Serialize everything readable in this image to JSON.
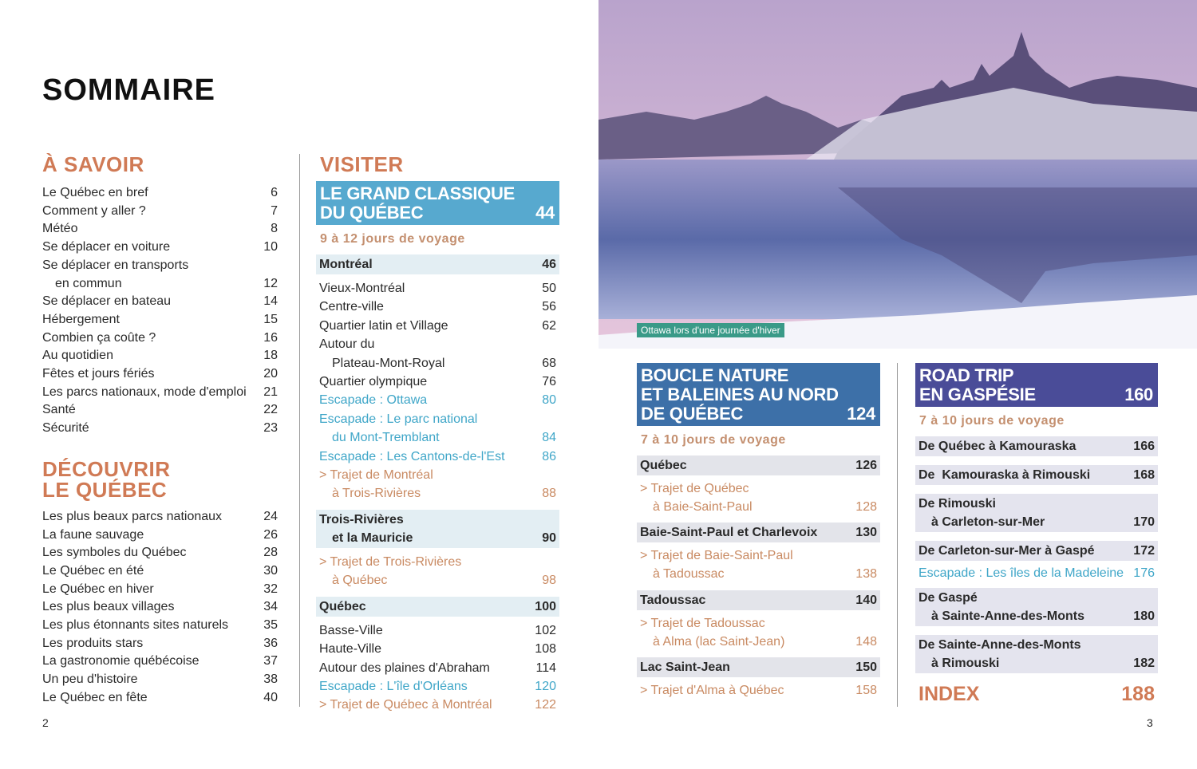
{
  "title": "SOMMAIRE",
  "page_left": "2",
  "page_right": "3",
  "photo_caption": "Ottawa lors d'une journée d'hiver",
  "colors": {
    "heading": "#d07a55",
    "box_classique": "#57a9cf",
    "box_boucle": "#3d70a8",
    "box_road": "#4a4c98",
    "hl_classique": "#e3eef3",
    "hl_boucle": "#e3e4ea",
    "hl_road": "#e4e4ee",
    "escapade": "#3fa6c8",
    "trajet": "#c98a62",
    "caption": "#3a9a88"
  },
  "col1": {
    "savoir_heading": "À SAVOIR",
    "savoir": [
      {
        "lines": [
          "Le Québec en bref"
        ],
        "page": "6"
      },
      {
        "lines": [
          "Comment y aller ?"
        ],
        "page": "7"
      },
      {
        "lines": [
          "Météo"
        ],
        "page": "8"
      },
      {
        "lines": [
          "Se déplacer en voiture"
        ],
        "page": "10"
      },
      {
        "lines": [
          "Se déplacer en transports",
          "en commun"
        ],
        "page": "12"
      },
      {
        "lines": [
          "Se déplacer en bateau"
        ],
        "page": "14"
      },
      {
        "lines": [
          "Hébergement"
        ],
        "page": "15"
      },
      {
        "lines": [
          "Combien ça coûte ?"
        ],
        "page": "16"
      },
      {
        "lines": [
          "Au quotidien"
        ],
        "page": "18"
      },
      {
        "lines": [
          "Fêtes et jours fériés"
        ],
        "page": "20"
      },
      {
        "lines": [
          "Les parcs nationaux, mode d'emploi"
        ],
        "page": "21"
      },
      {
        "lines": [
          "Santé"
        ],
        "page": "22"
      },
      {
        "lines": [
          "Sécurité"
        ],
        "page": "23"
      }
    ],
    "decouvrir_heading": [
      "DÉCOUVRIR",
      "LE QUÉBEC"
    ],
    "decouvrir": [
      {
        "lines": [
          "Les plus beaux parcs nationaux"
        ],
        "page": "24"
      },
      {
        "lines": [
          "La faune sauvage"
        ],
        "page": "26"
      },
      {
        "lines": [
          "Les symboles du Québec"
        ],
        "page": "28"
      },
      {
        "lines": [
          "Le Québec en été"
        ],
        "page": "30"
      },
      {
        "lines": [
          "Le Québec en hiver"
        ],
        "page": "32"
      },
      {
        "lines": [
          "Les plus beaux villages"
        ],
        "page": "34"
      },
      {
        "lines": [
          "Les plus étonnants sites naturels"
        ],
        "page": "35"
      },
      {
        "lines": [
          "Les produits stars"
        ],
        "page": "36"
      },
      {
        "lines": [
          "La gastronomie québécoise"
        ],
        "page": "37"
      },
      {
        "lines": [
          "Un peu d'histoire"
        ],
        "page": "38"
      },
      {
        "lines": [
          "Le Québec en fête"
        ],
        "page": "40"
      }
    ]
  },
  "col2": {
    "heading": "VISITER",
    "box": {
      "lines": [
        "LE GRAND CLASSIQUE",
        "DU QUÉBEC"
      ],
      "page": "44"
    },
    "sub": "9 à 12 jours de voyage",
    "entries": [
      {
        "type": "hl",
        "lines": [
          "Montréal"
        ],
        "page": "46"
      },
      {
        "type": "item",
        "lines": [
          "Vieux-Montréal"
        ],
        "page": "50"
      },
      {
        "type": "item",
        "lines": [
          "Centre-ville"
        ],
        "page": "56"
      },
      {
        "type": "item",
        "lines": [
          "Quartier latin et Village"
        ],
        "page": "62"
      },
      {
        "type": "item",
        "lines": [
          "Autour du",
          "Plateau-Mont-Royal"
        ],
        "page": "68"
      },
      {
        "type": "item",
        "lines": [
          "Quartier olympique"
        ],
        "page": "76"
      },
      {
        "type": "escapade",
        "lines": [
          "Escapade : Ottawa"
        ],
        "page": "80"
      },
      {
        "type": "escapade",
        "lines": [
          "Escapade : Le parc national",
          "du Mont-Tremblant"
        ],
        "page": "84"
      },
      {
        "type": "escapade",
        "lines": [
          "Escapade : Les Cantons-de-l'Est"
        ],
        "page": "86"
      },
      {
        "type": "trajet",
        "lines": [
          "> Trajet de Montréal",
          "à Trois-Rivières"
        ],
        "page": "88"
      },
      {
        "type": "hl",
        "lines": [
          "Trois-Rivières",
          "et la Mauricie"
        ],
        "page": "90"
      },
      {
        "type": "trajet",
        "lines": [
          "> Trajet de Trois-Rivières",
          "à Québec"
        ],
        "page": "98"
      },
      {
        "type": "hl",
        "lines": [
          "Québec"
        ],
        "page": "100"
      },
      {
        "type": "item",
        "lines": [
          "Basse-Ville"
        ],
        "page": "102"
      },
      {
        "type": "item",
        "lines": [
          "Haute-Ville"
        ],
        "page": "108"
      },
      {
        "type": "item",
        "lines": [
          "Autour des plaines d'Abraham"
        ],
        "page": "114"
      },
      {
        "type": "escapade",
        "lines": [
          "Escapade : L'île d'Orléans"
        ],
        "page": "120"
      },
      {
        "type": "trajet",
        "lines": [
          "> Trajet de Québec à Montréal"
        ],
        "page": "122"
      }
    ]
  },
  "col3": {
    "box": {
      "lines": [
        "BOUCLE NATURE",
        "ET BALEINES AU NORD",
        "DE QUÉBEC"
      ],
      "page": "124"
    },
    "sub": "7 à 10 jours de voyage",
    "entries": [
      {
        "type": "hl",
        "lines": [
          "Québec"
        ],
        "page": "126"
      },
      {
        "type": "trajet",
        "lines": [
          "> Trajet de Québec",
          "à Baie-Saint-Paul"
        ],
        "page": "128"
      },
      {
        "type": "hl",
        "lines": [
          "Baie-Saint-Paul et Charlevoix"
        ],
        "page": "130"
      },
      {
        "type": "trajet",
        "lines": [
          "> Trajet de Baie-Saint-Paul",
          "à Tadoussac"
        ],
        "page": "138"
      },
      {
        "type": "hl",
        "lines": [
          "Tadoussac"
        ],
        "page": "140"
      },
      {
        "type": "trajet",
        "lines": [
          "> Trajet de Tadoussac",
          "à Alma (lac Saint-Jean)"
        ],
        "page": "148"
      },
      {
        "type": "hl",
        "lines": [
          "Lac Saint-Jean"
        ],
        "page": "150"
      },
      {
        "type": "trajet",
        "lines": [
          "> Trajet d'Alma à Québec"
        ],
        "page": "158"
      }
    ]
  },
  "col4": {
    "box": {
      "lines": [
        "ROAD TRIP",
        "EN GASPÉSIE"
      ],
      "page": "160"
    },
    "sub": "7 à 10 jours de voyage",
    "entries": [
      {
        "type": "hl",
        "lines": [
          "De Québec à Kamouraska"
        ],
        "page": "166"
      },
      {
        "type": "hl",
        "lines": [
          "De  Kamouraska à Rimouski"
        ],
        "page": "168"
      },
      {
        "type": "hl",
        "lines": [
          "De Rimouski",
          "à Carleton-sur-Mer"
        ],
        "page": "170"
      },
      {
        "type": "hl",
        "lines": [
          "De Carleton-sur-Mer à Gaspé"
        ],
        "page": "172"
      },
      {
        "type": "escapade",
        "lines": [
          "Escapade : Les îles de la Madeleine"
        ],
        "page": "176"
      },
      {
        "type": "hl",
        "lines": [
          "De Gaspé",
          "à Sainte-Anne-des-Monts"
        ],
        "page": "180"
      },
      {
        "type": "hl",
        "lines": [
          "De Sainte-Anne-des-Monts",
          "à Rimouski"
        ],
        "page": "182"
      }
    ],
    "index": {
      "label": "INDEX",
      "page": "188"
    }
  }
}
